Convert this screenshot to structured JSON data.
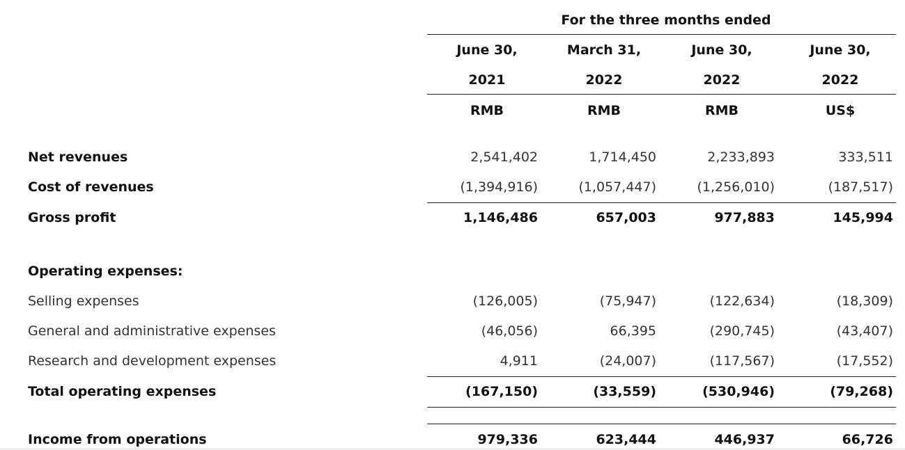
{
  "header": {
    "period_title": "For the three months ended",
    "columns": [
      {
        "line1": "June 30,",
        "line2": "2021",
        "currency": "RMB"
      },
      {
        "line1": "March 31,",
        "line2": "2022",
        "currency": "RMB"
      },
      {
        "line1": "June 30,",
        "line2": "2022",
        "currency": "RMB"
      },
      {
        "line1": "June 30,",
        "line2": "2022",
        "currency": "US$"
      }
    ]
  },
  "rows": {
    "net_revenues": {
      "label": "Net revenues",
      "values": [
        "2,541,402",
        "1,714,450",
        "2,233,893",
        "333,511"
      ]
    },
    "cost_of_revenues": {
      "label": "Cost of revenues",
      "values": [
        "(1,394,916)",
        "(1,057,447)",
        "(1,256,010)",
        "(187,517)"
      ]
    },
    "gross_profit": {
      "label": "Gross profit",
      "values": [
        "1,146,486",
        "657,003",
        "977,883",
        "145,994"
      ]
    },
    "operating_expenses_heading": {
      "label": "Operating expenses:"
    },
    "selling_expenses": {
      "label": "Selling expenses",
      "values": [
        "(126,005)",
        "(75,947)",
        "(122,634)",
        "(18,309)"
      ]
    },
    "general_admin_expenses": {
      "label": "General and administrative expenses",
      "values": [
        "(46,056)",
        "66,395",
        "(290,745)",
        "(43,407)"
      ]
    },
    "rnd_expenses": {
      "label": "Research and development expenses",
      "values": [
        "4,911",
        "(24,007)",
        "(117,567)",
        "(17,552)"
      ]
    },
    "total_operating_expenses": {
      "label": "Total operating expenses",
      "values": [
        "(167,150)",
        "(33,559)",
        "(530,946)",
        "(79,268)"
      ]
    },
    "income_from_operations": {
      "label": "Income from operations",
      "values": [
        "979,336",
        "623,444",
        "446,937",
        "66,726"
      ]
    }
  }
}
